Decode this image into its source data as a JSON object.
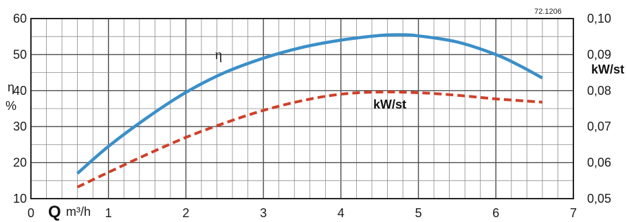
{
  "chart_data": {
    "type": "line",
    "code": "72.1206",
    "x_axis": {
      "symbol": "Q",
      "unit": "m³/h",
      "range": [
        0,
        7
      ],
      "ticks": [
        "0",
        "1",
        "2",
        "3",
        "4",
        "5",
        "6",
        "7"
      ]
    },
    "y_left": {
      "label": "η",
      "unit": "%",
      "range": [
        10,
        60
      ],
      "ticks": [
        "10",
        "20",
        "30",
        "40",
        "50",
        "60"
      ]
    },
    "y_right": {
      "label": "kW/st",
      "range": [
        0.05,
        0.1
      ],
      "ticks": [
        "0,05",
        "0,06",
        "0,07",
        "0,08",
        "0,09",
        "0,10"
      ]
    },
    "grid": true,
    "series": [
      {
        "name": "η",
        "axis": "left",
        "style": "solid",
        "color": "#3b8fc8",
        "points": [
          [
            0.6,
            17
          ],
          [
            1.0,
            24.5
          ],
          [
            1.5,
            32.5
          ],
          [
            2.0,
            39.5
          ],
          [
            2.5,
            45
          ],
          [
            3.0,
            49
          ],
          [
            3.5,
            52
          ],
          [
            4.0,
            54
          ],
          [
            4.5,
            55.3
          ],
          [
            4.8,
            55.5
          ],
          [
            5.0,
            55.2
          ],
          [
            5.5,
            53.5
          ],
          [
            6.0,
            50
          ],
          [
            6.3,
            47
          ],
          [
            6.6,
            43.5
          ]
        ]
      },
      {
        "name": "kW/st",
        "axis": "right",
        "style": "dashed",
        "color": "#d0402a",
        "points": [
          [
            0.6,
            0.0532
          ],
          [
            1.0,
            0.0573
          ],
          [
            1.5,
            0.0623
          ],
          [
            2.0,
            0.067
          ],
          [
            2.5,
            0.071
          ],
          [
            3.0,
            0.0745
          ],
          [
            3.5,
            0.0772
          ],
          [
            4.0,
            0.079
          ],
          [
            4.5,
            0.0796
          ],
          [
            5.0,
            0.0794
          ],
          [
            5.5,
            0.0787
          ],
          [
            6.0,
            0.0777
          ],
          [
            6.6,
            0.0768
          ]
        ]
      }
    ]
  }
}
